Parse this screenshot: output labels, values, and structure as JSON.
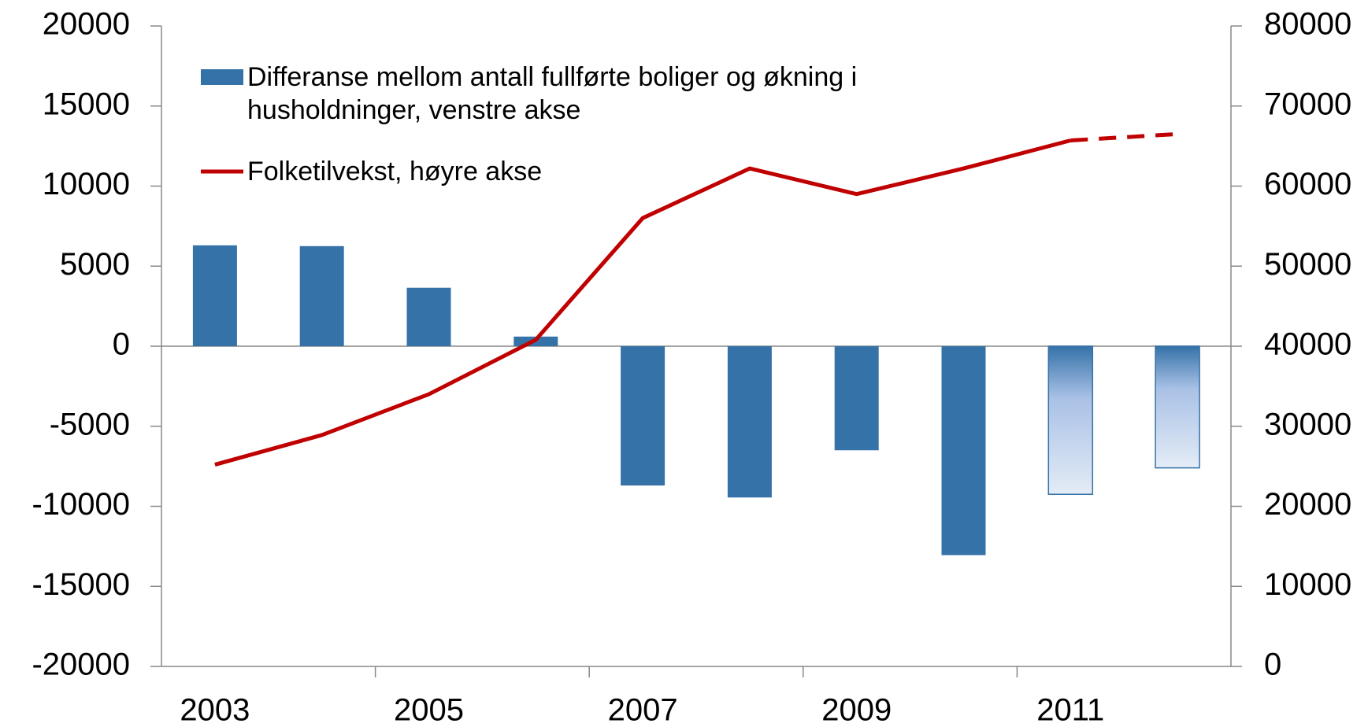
{
  "chart_data": {
    "type": "bar",
    "categories": [
      "2003",
      null,
      "2005",
      null,
      "2007",
      null,
      "2009",
      null,
      "2011",
      null
    ],
    "series": [
      {
        "name": "Differanse mellom antall fullførte boliger og økning i husholdninger, venstre akse",
        "type": "bar",
        "color": "#3572a8",
        "values": [
          6300,
          6250,
          3650,
          600,
          -8700,
          -9450,
          -6500,
          -13050,
          -9250,
          -7600
        ],
        "forecast_from": 8
      },
      {
        "name": "Folketilvekst, høyre akse",
        "type": "line",
        "axis": "y2",
        "color": "#c00000",
        "values": [
          25200,
          28900,
          34000,
          40800,
          56000,
          62200,
          59000,
          62200,
          65700,
          66500
        ],
        "dashed_from": 8
      }
    ],
    "ylim": [
      -20000,
      20000
    ],
    "yticks": [
      -20000,
      -15000,
      -10000,
      -5000,
      0,
      5000,
      10000,
      15000,
      20000
    ],
    "y2lim": [
      0,
      80000
    ],
    "y2ticks": [
      0,
      10000,
      20000,
      30000,
      40000,
      50000,
      60000,
      70000,
      80000
    ]
  }
}
